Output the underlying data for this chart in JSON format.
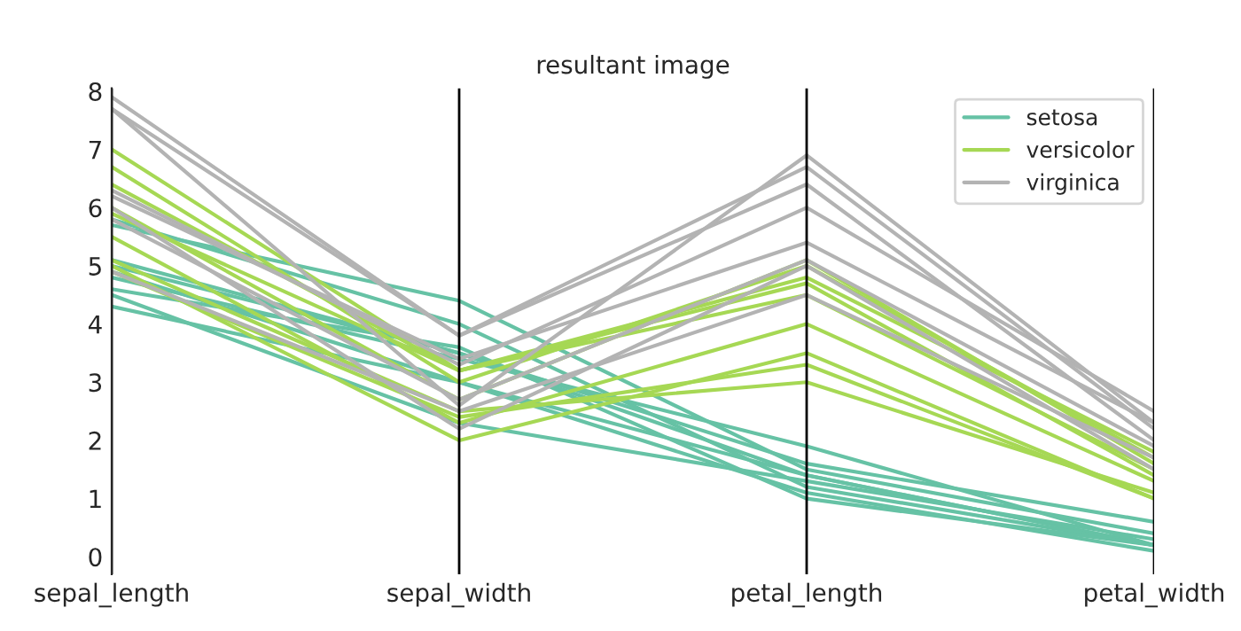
{
  "chart_data": {
    "type": "line",
    "title": "resultant image",
    "categories": [
      "sepal_length",
      "sepal_width",
      "petal_length",
      "petal_width"
    ],
    "ylim": [
      -0.3,
      8.05
    ],
    "yticks": [
      0,
      1,
      2,
      3,
      4,
      5,
      6,
      7,
      8
    ],
    "grid": "x",
    "legend": "top right",
    "series": [
      {
        "name": "setosa",
        "color": "#66c2a5",
        "values": [
          5.1,
          3.5,
          1.4,
          0.2
        ]
      },
      {
        "color": "#66c2a5",
        "values": [
          4.9,
          3.0,
          1.4,
          0.2
        ]
      },
      {
        "color": "#66c2a5",
        "values": [
          4.3,
          3.0,
          1.1,
          0.1
        ]
      },
      {
        "color": "#66c2a5",
        "values": [
          5.8,
          4.0,
          1.2,
          0.2
        ]
      },
      {
        "color": "#66c2a5",
        "values": [
          5.7,
          4.4,
          1.5,
          0.4
        ]
      },
      {
        "color": "#66c2a5",
        "values": [
          4.5,
          2.3,
          1.3,
          0.3
        ]
      },
      {
        "color": "#66c2a5",
        "values": [
          5.0,
          3.5,
          1.6,
          0.6
        ]
      },
      {
        "color": "#66c2a5",
        "values": [
          4.6,
          3.6,
          1.0,
          0.2
        ]
      },
      {
        "color": "#66c2a5",
        "values": [
          4.8,
          3.4,
          1.9,
          0.2
        ]
      },
      {
        "name": "versicolor",
        "color": "#a6d854",
        "values": [
          7.0,
          3.2,
          4.7,
          1.4
        ]
      },
      {
        "color": "#a6d854",
        "values": [
          6.4,
          3.2,
          4.5,
          1.5
        ]
      },
      {
        "color": "#a6d854",
        "values": [
          5.5,
          2.3,
          4.0,
          1.3
        ]
      },
      {
        "color": "#a6d854",
        "values": [
          5.1,
          2.5,
          3.0,
          1.1
        ]
      },
      {
        "color": "#a6d854",
        "values": [
          5.0,
          2.0,
          3.5,
          1.0
        ]
      },
      {
        "color": "#a6d854",
        "values": [
          6.7,
          3.0,
          5.0,
          1.7
        ]
      },
      {
        "color": "#a6d854",
        "values": [
          6.0,
          2.7,
          5.1,
          1.6
        ]
      },
      {
        "color": "#a6d854",
        "values": [
          5.9,
          3.2,
          4.8,
          1.8
        ]
      },
      {
        "color": "#a6d854",
        "values": [
          4.9,
          2.4,
          3.3,
          1.0
        ]
      },
      {
        "name": "virginica",
        "color": "#b3b3b3",
        "values": [
          6.3,
          3.3,
          6.0,
          2.5
        ]
      },
      {
        "color": "#b3b3b3",
        "values": [
          5.8,
          2.7,
          5.1,
          1.9
        ]
      },
      {
        "color": "#b3b3b3",
        "values": [
          7.7,
          3.8,
          6.7,
          2.2
        ]
      },
      {
        "color": "#b3b3b3",
        "values": [
          7.9,
          3.8,
          6.4,
          2.0
        ]
      },
      {
        "color": "#b3b3b3",
        "values": [
          4.9,
          2.5,
          4.5,
          1.7
        ]
      },
      {
        "color": "#b3b3b3",
        "values": [
          6.0,
          2.2,
          5.0,
          1.5
        ]
      },
      {
        "color": "#b3b3b3",
        "values": [
          7.7,
          2.6,
          6.9,
          2.3
        ]
      },
      {
        "color": "#b3b3b3",
        "values": [
          6.2,
          3.4,
          5.4,
          2.3
        ]
      }
    ]
  }
}
